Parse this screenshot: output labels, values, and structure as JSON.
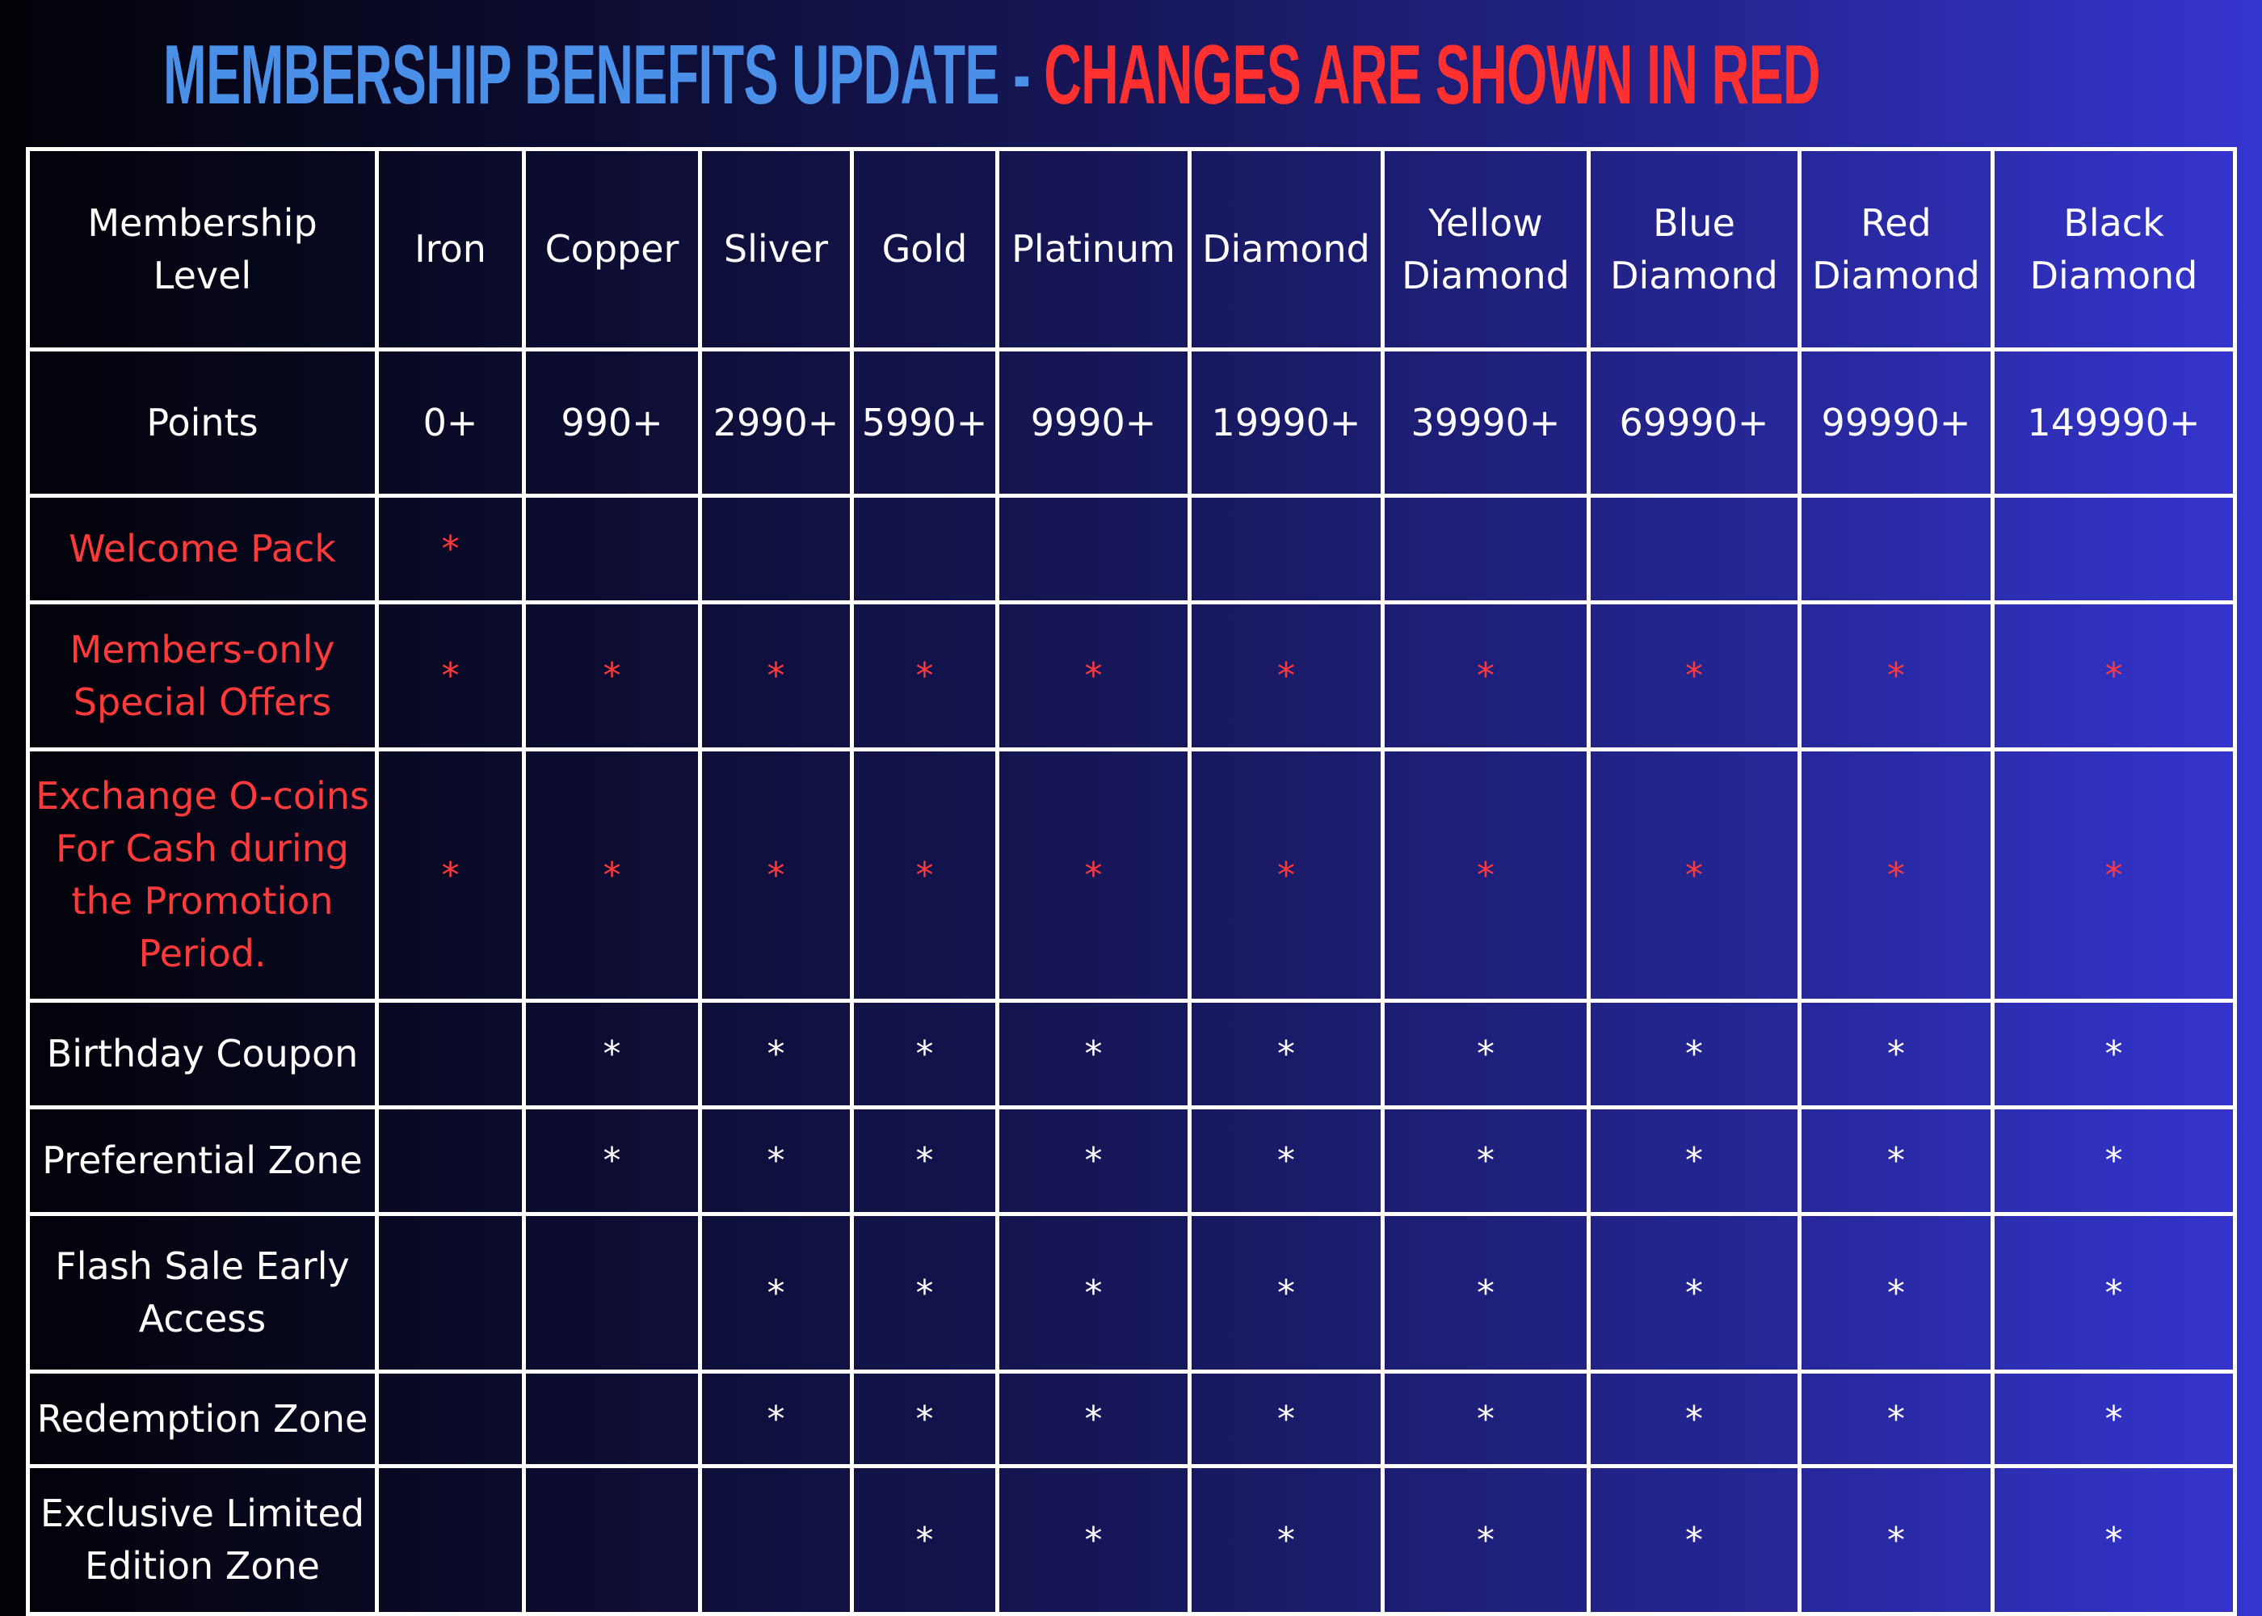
{
  "title": {
    "part1": "MEMBERSHIP BENEFITS UPDATE",
    "separator": " - ",
    "part2": "CHANGES ARE SHOWN IN RED"
  },
  "colors": {
    "title_blue": "#4a8fe8",
    "changed_red": "#ff3a3a",
    "grid": "#ffffff"
  },
  "header": {
    "label": "Membership Level",
    "levels": [
      "Iron",
      "Copper",
      "Sliver",
      "Gold",
      "Platinum",
      "Diamond",
      "Yellow Diamond",
      "Blue Diamond",
      "Red Diamond",
      "Black Diamond"
    ]
  },
  "points": {
    "label": "Points",
    "values": [
      "0+",
      "990+",
      "2990+",
      "5990+",
      "9990+",
      "19990+",
      "39990+",
      "69990+",
      "99990+",
      "149990+"
    ]
  },
  "benefits": [
    {
      "label": "Welcome Pack",
      "changed": true,
      "cells": [
        "*",
        "",
        "",
        "",
        "",
        "",
        "",
        "",
        "",
        ""
      ]
    },
    {
      "label": "Members-only Special Offers",
      "changed": true,
      "cells": [
        "*",
        "*",
        "*",
        "*",
        "*",
        "*",
        "*",
        "*",
        "*",
        "*"
      ]
    },
    {
      "label": "Exchange O-coins For Cash during the Promotion Period.",
      "changed": true,
      "cells": [
        "*",
        "*",
        "*",
        "*",
        "*",
        "*",
        "*",
        "*",
        "*",
        "*"
      ]
    },
    {
      "label": "Birthday Coupon",
      "changed": false,
      "cells": [
        "",
        "*",
        "*",
        "*",
        "*",
        "*",
        "*",
        "*",
        "*",
        "*"
      ]
    },
    {
      "label": "Preferential Zone",
      "changed": false,
      "cells": [
        "",
        "*",
        "*",
        "*",
        "*",
        "*",
        "*",
        "*",
        "*",
        "*"
      ]
    },
    {
      "label": "Flash Sale Early Access",
      "changed": false,
      "cells": [
        "",
        "",
        "*",
        "*",
        "*",
        "*",
        "*",
        "*",
        "*",
        "*"
      ]
    },
    {
      "label": "Redemption Zone",
      "changed": false,
      "cells": [
        "",
        "",
        "*",
        "*",
        "*",
        "*",
        "*",
        "*",
        "*",
        "*"
      ]
    },
    {
      "label": "Exclusive Limited Edition Zone",
      "changed": false,
      "cells": [
        "",
        "",
        "",
        "*",
        "*",
        "*",
        "*",
        "*",
        "*",
        "*"
      ]
    }
  ]
}
